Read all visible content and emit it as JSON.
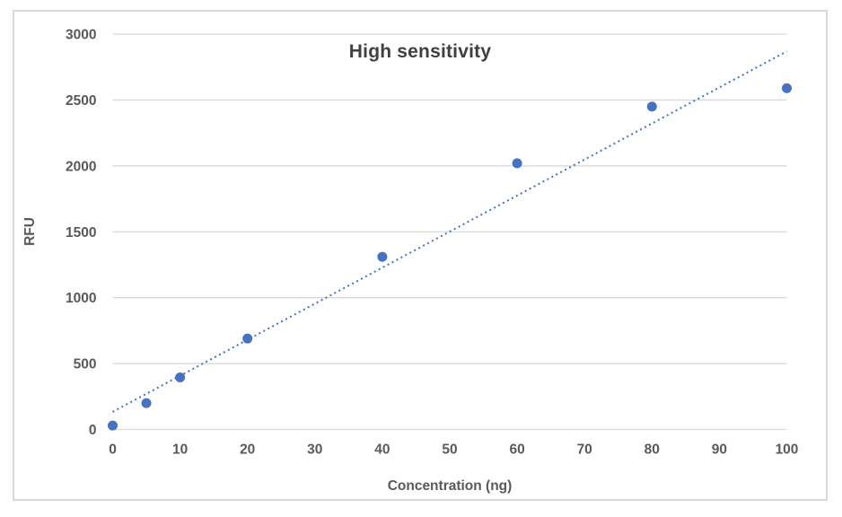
{
  "chart": {
    "title": "High sensitivity",
    "border_color": "#d9d9d9",
    "background": "#ffffff"
  },
  "chart_data": {
    "type": "scatter",
    "title": "High sensitivity",
    "xlabel": "Concentration (ng)",
    "ylabel": "RFU",
    "x": [
      0,
      5,
      10,
      20,
      40,
      60,
      80,
      100
    ],
    "y": [
      30,
      200,
      395,
      690,
      1310,
      2020,
      2450,
      2590
    ],
    "xlim": [
      0,
      100
    ],
    "ylim": [
      0,
      3000
    ],
    "x_ticks": [
      0,
      10,
      20,
      30,
      40,
      50,
      60,
      70,
      80,
      90,
      100
    ],
    "y_ticks": [
      0,
      500,
      1000,
      1500,
      2000,
      2500,
      3000
    ],
    "grid": "horizontal-only",
    "legend": "none",
    "marker_color": "#4472c4",
    "trendline": {
      "type": "linear",
      "style": "dotted",
      "slope": 27.35,
      "intercept": 134,
      "color": "#4472c4"
    }
  },
  "style": {
    "title_color": "#404040",
    "tick_label_color": "#595959",
    "gridline_color": "#d9d9d9"
  }
}
